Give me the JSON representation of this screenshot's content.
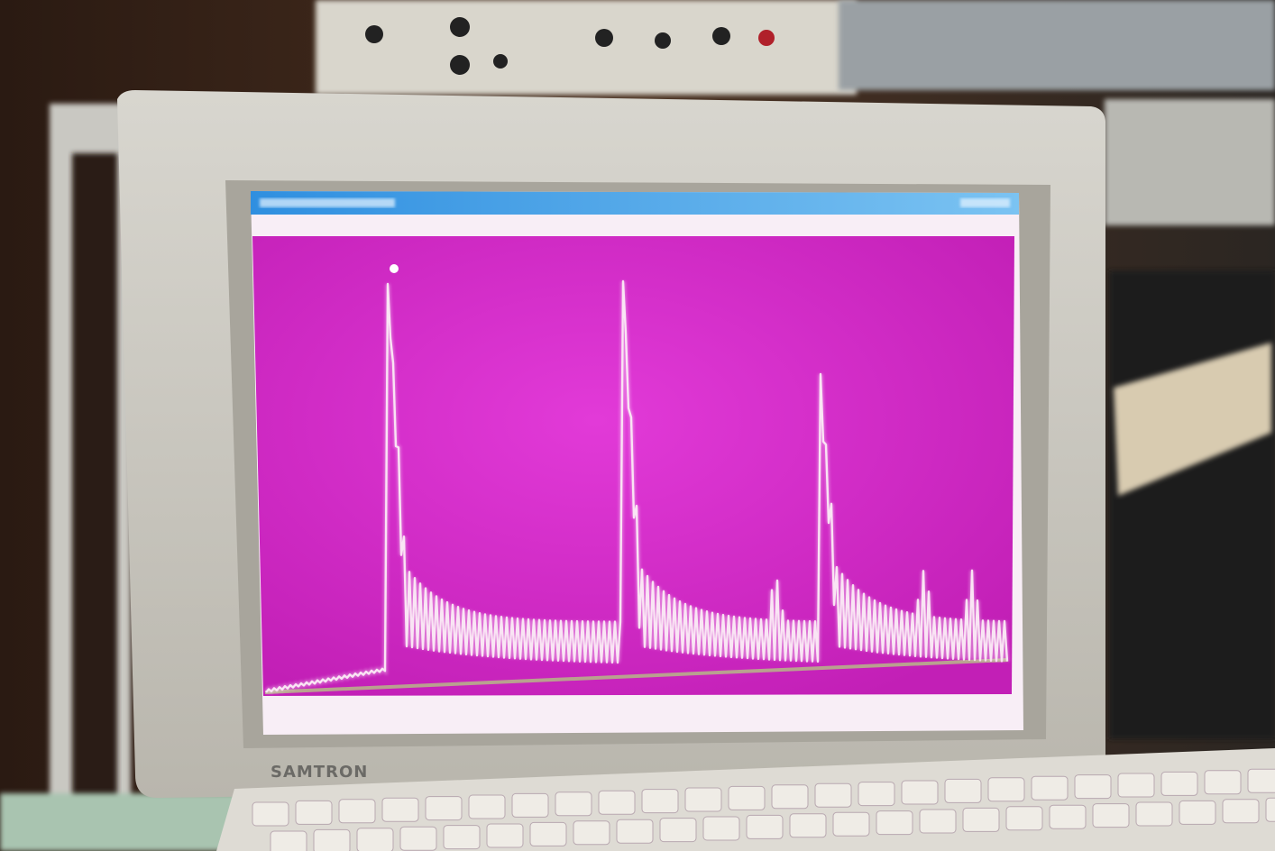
{
  "monitor": {
    "brand": "SAMTRON"
  }
}
